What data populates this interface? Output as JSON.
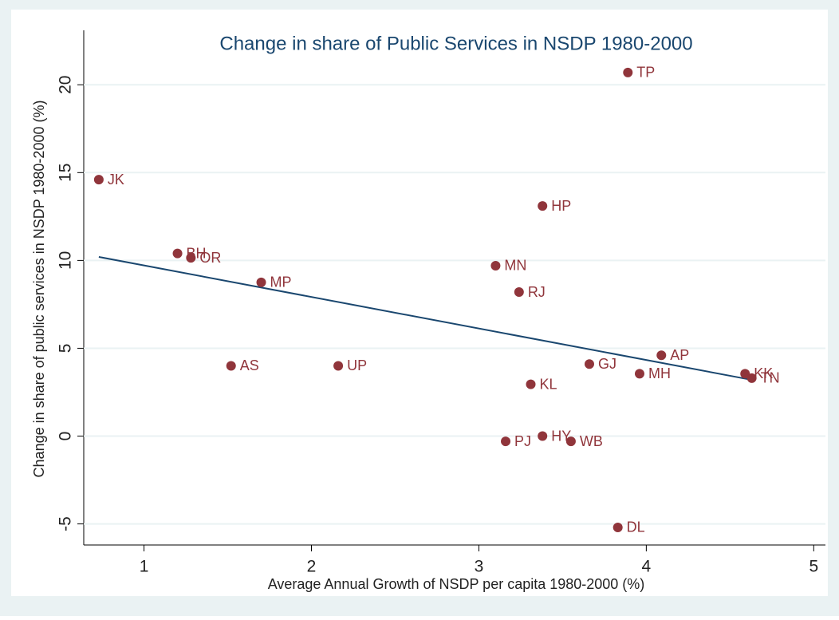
{
  "chart_data": {
    "type": "scatter",
    "title": "Change in share of Public Services in NSDP 1980-2000",
    "x_label": "Average Annual Growth of NSDP per capita 1980-2000 (%)",
    "y_label": "Change in share of public services in NSDP 1980-2000 (%)",
    "labels": [
      "JK",
      "BH",
      "OR",
      "MP",
      "AS",
      "UP",
      "MN",
      "RJ",
      "HP",
      "TP",
      "GJ",
      "AP",
      "MH",
      "KK",
      "TN",
      "KL",
      "PJ",
      "HY",
      "WB",
      "DL"
    ],
    "x": [
      0.73,
      1.2,
      1.28,
      1.7,
      1.52,
      2.16,
      3.1,
      3.24,
      3.38,
      3.89,
      3.66,
      4.09,
      3.96,
      4.59,
      4.63,
      3.31,
      3.16,
      3.38,
      3.55,
      3.83
    ],
    "y": [
      14.6,
      10.4,
      10.15,
      8.75,
      4.0,
      4.0,
      9.7,
      8.2,
      13.1,
      20.7,
      4.1,
      4.6,
      3.55,
      3.55,
      3.3,
      2.95,
      -0.3,
      0.0,
      -0.3,
      -5.2
    ],
    "color": "#90353b",
    "fit": {
      "x": [
        0.73,
        4.63
      ],
      "y": [
        10.2,
        3.2
      ],
      "color": "#1a476f"
    },
    "xlim": [
      0.64,
      5.07
    ],
    "ylim": [
      -6.2,
      23.1
    ],
    "xticks": [
      1,
      2,
      3,
      4,
      5
    ],
    "yticks": [
      -5,
      0,
      5,
      10,
      15,
      20
    ],
    "grid": true
  }
}
